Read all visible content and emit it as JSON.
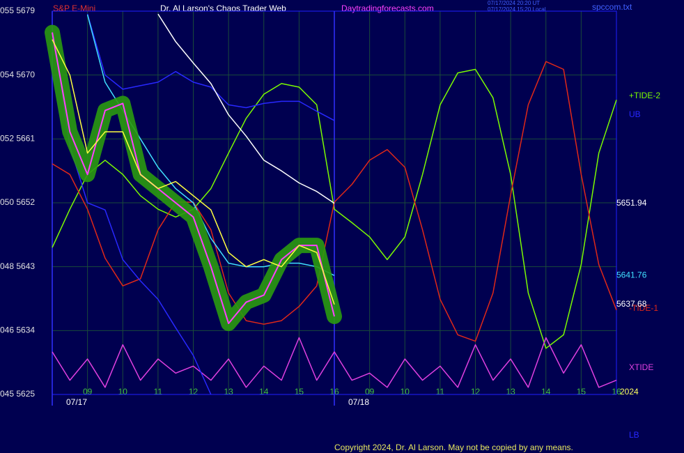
{
  "chart_data": {
    "type": "line",
    "title": "S&P E-Mini",
    "subtitle": "Dr. Al Larson's Chaos Trader Web",
    "site": "Daytradingforecasts.com",
    "timestamps": [
      "07/17/2024 20:20 UT",
      "07/17/2024 15:20 Local"
    ],
    "file_name": "spccom.txt",
    "year_label": "2024",
    "copyright": "Copyright 2024, Dr. Al Larson. May not be copied by any means.",
    "ylim": [
      5625,
      5679
    ],
    "yticks": [
      {
        "value": 5625,
        "label": "045 5625"
      },
      {
        "value": 5634,
        "label": "046 5634"
      },
      {
        "value": 5643,
        "label": "048 5643"
      },
      {
        "value": 5652,
        "label": "050 5652"
      },
      {
        "value": 5661,
        "label": "052 5661"
      },
      {
        "value": 5670,
        "label": "054 5670"
      },
      {
        "value": 5679,
        "label": "055 5679"
      }
    ],
    "xlim": [
      0,
      16
    ],
    "xticks": [
      {
        "value": 1,
        "label": "09"
      },
      {
        "value": 2,
        "label": "10"
      },
      {
        "value": 3,
        "label": "11"
      },
      {
        "value": 4,
        "label": "12"
      },
      {
        "value": 5,
        "label": "13"
      },
      {
        "value": 6,
        "label": "14"
      },
      {
        "value": 7,
        "label": "15"
      },
      {
        "value": 8,
        "label": "16"
      },
      {
        "value": 9,
        "label": "09"
      },
      {
        "value": 10,
        "label": "10"
      },
      {
        "value": 11,
        "label": "11"
      },
      {
        "value": 12,
        "label": "12"
      },
      {
        "value": 13,
        "label": "13"
      },
      {
        "value": 14,
        "label": "14"
      },
      {
        "value": 15,
        "label": "15"
      },
      {
        "value": 16,
        "label": "16"
      }
    ],
    "date_labels": [
      {
        "x": 0,
        "label": "07/17"
      },
      {
        "x": 8,
        "label": "07/18"
      }
    ],
    "grid": true,
    "x": [
      0,
      0.5,
      1,
      1.5,
      2,
      2.5,
      3,
      3.5,
      4,
      4.5,
      5,
      5.5,
      6,
      6.5,
      7,
      7.5,
      8,
      8.5,
      9,
      9.5,
      10,
      10.5,
      11,
      11.5,
      12,
      12.5,
      13,
      13.5,
      14,
      14.5,
      15,
      15.5,
      16
    ],
    "series": [
      {
        "name": "+TIDE-2",
        "color": "#7cfc00",
        "values": [
          5645.7,
          5651.1,
          5656,
          5658,
          5656,
          5653,
          5651.1,
          5650,
          5651.1,
          5654,
          5659,
          5663.9,
          5667.3,
          5668.8,
          5668.3,
          5665.8,
          5651.1,
          5649.2,
          5647.2,
          5644,
          5647.2,
          5656,
          5665.8,
          5670.3,
          5670.8,
          5666.8,
          5656,
          5639.3,
          5631.5,
          5633.4,
          5643.3,
          5659,
          5666.5
        ]
      },
      {
        "name": "-TIDE-1",
        "color": "#e02818",
        "values": [
          5657.5,
          5656,
          5651.1,
          5644.2,
          5640.3,
          5641.3,
          5648.2,
          5652.1,
          5652.1,
          5648.2,
          5639.3,
          5635.4,
          5634.9,
          5635.4,
          5637.4,
          5640.3,
          5652.1,
          5654.6,
          5658,
          5659.5,
          5657,
          5648.2,
          5638.4,
          5633.4,
          5632.5,
          5639.3,
          5653.1,
          5665.8,
          5671.9,
          5670.8,
          5656,
          5643.3,
          5636.9
        ]
      },
      {
        "name": "XTIDE",
        "color": "#e040e0",
        "values": [
          5631,
          5627,
          5630,
          5626,
          5632,
          5627,
          5630,
          5628,
          5629,
          5627,
          5630,
          5626,
          5629,
          5627,
          5633,
          5627,
          5631,
          5627,
          5628,
          5626,
          5630,
          5627,
          5629,
          5626,
          5632,
          5627,
          5630,
          5626,
          5633,
          5628,
          5632,
          5626,
          5627
        ]
      },
      {
        "name": "UB",
        "color": "#2828ff",
        "values": [
          null,
          null,
          5678.6,
          5670,
          5668,
          5668.5,
          5669,
          5670.5,
          5669,
          5668.3,
          5665.8,
          5665.4,
          5666,
          5666.3,
          5666.3,
          5664.9,
          5663.6,
          null,
          null,
          null,
          null,
          null,
          null,
          null,
          null,
          null,
          null,
          null,
          null,
          null,
          null,
          null,
          null
        ]
      },
      {
        "name": "LB",
        "color": "#2828ff",
        "values": [
          5676.6,
          5660,
          5652,
          5651,
          5644,
          5641,
          5638.4,
          5634.4,
          5630.5,
          5625,
          null,
          null,
          null,
          null,
          null,
          null,
          null,
          null,
          null,
          null,
          null,
          null,
          null,
          null,
          null,
          null,
          null,
          null,
          null,
          null,
          null,
          null,
          null
        ]
      },
      {
        "color": "#ffffff",
        "end_value": 5651.94,
        "values": [
          null,
          null,
          null,
          null,
          null,
          null,
          5678.6,
          5674.7,
          5671.7,
          5668.8,
          5664.4,
          5661.4,
          5658,
          5656.5,
          5654.8,
          5653.6,
          5651.94,
          null,
          null,
          null,
          null,
          null,
          null,
          null,
          null,
          null,
          null,
          null,
          null,
          null,
          null,
          null,
          null
        ]
      },
      {
        "color": "#40e0ff",
        "end_value": 5641.76,
        "values": [
          null,
          null,
          5678.5,
          5669,
          5665,
          5661,
          5657,
          5654,
          5652,
          5647,
          5643.5,
          5643,
          5643,
          5643.5,
          5643.5,
          5643,
          5641.76,
          null,
          null,
          null,
          null,
          null,
          null,
          null,
          null,
          null,
          null,
          null,
          null,
          null,
          null,
          null,
          null
        ]
      },
      {
        "color": "#ff40ff",
        "halo_color": "#2a9a10",
        "values": [
          5676,
          5662,
          5656,
          5665,
          5666,
          5656,
          5654,
          5652,
          5650,
          5643,
          5635,
          5638,
          5639,
          5644,
          5646,
          5646,
          5636,
          null,
          null,
          null,
          null,
          null,
          null,
          null,
          null,
          null,
          null,
          null,
          null,
          null,
          null,
          null,
          null
        ]
      },
      {
        "color": "#ffff40",
        "end_value": 5637.68,
        "values": [
          5675,
          5670,
          5659,
          5662,
          5662,
          5656,
          5654,
          5655,
          5653,
          5651,
          5645,
          5643,
          5644,
          5643,
          5646,
          5645,
          5637.68,
          null,
          null,
          null,
          null,
          null,
          null,
          null,
          null,
          null,
          null,
          null,
          null,
          null,
          null,
          null,
          null
        ]
      }
    ]
  }
}
